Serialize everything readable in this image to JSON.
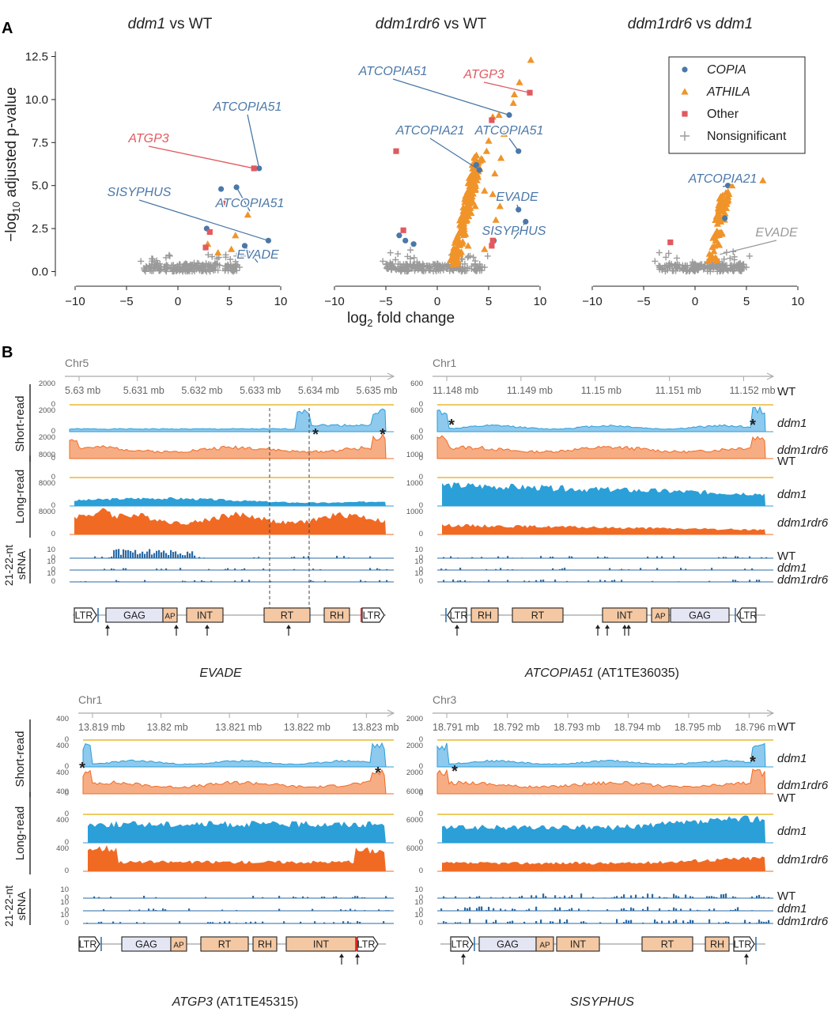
{
  "panel_a": {
    "label": "A",
    "titles": [
      {
        "parts": [
          {
            "t": "ddm1",
            "i": true
          },
          {
            "t": " vs WT",
            "i": false
          }
        ]
      },
      {
        "parts": [
          {
            "t": "ddm1rdr6",
            "i": true
          },
          {
            "t": " vs WT",
            "i": false
          }
        ]
      },
      {
        "parts": [
          {
            "t": "ddm1rdr6",
            "i": true
          },
          {
            "t": " vs ",
            "i": false
          },
          {
            "t": "ddm1",
            "i": true
          }
        ]
      }
    ],
    "xlabel_prefix": "log",
    "xlabel_sub": "2",
    "xlabel_suffix": " fold change",
    "ylabel_prefix": "−log",
    "ylabel_sub": "10",
    "ylabel_suffix": " adjusted p-value",
    "legend": [
      {
        "label": "COPIA",
        "italic": true,
        "shape": "circle",
        "color": "#4a78a8"
      },
      {
        "label": "ATHILA",
        "italic": true,
        "shape": "triangle",
        "color": "#f0942a"
      },
      {
        "label": "Other",
        "italic": false,
        "shape": "square",
        "color": "#e05a5f"
      },
      {
        "label": "Nonsignificant",
        "italic": false,
        "shape": "plus",
        "color": "#9a9a9a"
      }
    ]
  },
  "chart_data": [
    {
      "type": "scatter",
      "title": "ddm1 vs WT",
      "xlim": [
        -11,
        11
      ],
      "ylim": [
        -0.3,
        12.8
      ],
      "xticks": [
        -10,
        -5,
        0,
        5,
        10
      ],
      "yticks": [
        0.0,
        2.5,
        5.0,
        7.5,
        10.0,
        12.5
      ],
      "series": [
        {
          "name": "COPIA",
          "points": [
            [
              7.9,
              6.0
            ],
            [
              4.2,
              4.8
            ],
            [
              5.7,
              4.9
            ],
            [
              2.8,
              2.5
            ],
            [
              6.5,
              1.5
            ],
            [
              8.8,
              1.8
            ]
          ]
        },
        {
          "name": "ATHILA",
          "points": [
            [
              6.8,
              3.3
            ],
            [
              5.6,
              2.1
            ],
            [
              2.9,
              1.6
            ],
            [
              5.2,
              1.3
            ],
            [
              3.9,
              1.1
            ]
          ]
        },
        {
          "name": "Other",
          "points": [
            [
              7.4,
              6.0
            ],
            [
              4.6,
              4.0
            ],
            [
              3.1,
              2.3
            ],
            [
              2.7,
              1.4
            ]
          ]
        },
        {
          "name": "Nonsignificant",
          "band": [
            -3.3,
            5.8
          ]
        }
      ],
      "annotations": [
        {
          "text": "ATCOPIA51",
          "color": "#4a78a8",
          "target": [
            7.9,
            6.0
          ]
        },
        {
          "text": "ATGP3",
          "color": "#e05a5f",
          "target": [
            7.4,
            6.0
          ]
        },
        {
          "text": "SISYPHUS",
          "color": "#4a78a8",
          "target": [
            8.8,
            1.8
          ]
        },
        {
          "text": "ATCOPIA51",
          "color": "#4a78a8",
          "target": [
            5.7,
            4.9
          ]
        },
        {
          "text": "EVADE",
          "color": "#4a78a8",
          "target": [
            6.5,
            1.5
          ]
        }
      ]
    },
    {
      "type": "scatter",
      "title": "ddm1rdr6 vs WT",
      "xlim": [
        -11,
        11
      ],
      "ylim": [
        -0.3,
        12.8
      ],
      "xticks": [
        -10,
        -5,
        0,
        5,
        10
      ],
      "yticks": [
        0.0,
        2.5,
        5.0,
        7.5,
        10.0,
        12.5
      ],
      "series": [
        {
          "name": "COPIA",
          "points": [
            [
              7.0,
              9.1
            ],
            [
              7.9,
              7.0
            ],
            [
              3.8,
              6.2
            ],
            [
              4.1,
              5.9
            ],
            [
              7.9,
              3.6
            ],
            [
              8.6,
              2.9
            ],
            [
              -3.7,
              2.1
            ],
            [
              -3.1,
              1.8
            ],
            [
              -2.3,
              1.6
            ],
            [
              5.5,
              1.8
            ]
          ]
        },
        {
          "name": "ATHILA",
          "points": [
            [
              9.1,
              12.3
            ],
            [
              8.0,
              11.0
            ],
            [
              7.5,
              10.3
            ],
            [
              7.4,
              9.8
            ],
            [
              6.0,
              9.1
            ],
            [
              5.4,
              9.0
            ],
            [
              6.5,
              8.0
            ],
            [
              5.0,
              7.6
            ],
            [
              4.8,
              7.0
            ],
            [
              6.2,
              6.6
            ],
            [
              4.4,
              6.5
            ],
            [
              5.6,
              5.7
            ],
            [
              3.6,
              5.4
            ],
            [
              4.6,
              4.7
            ],
            [
              5.4,
              4.5
            ],
            [
              6.1,
              3.8
            ],
            [
              5.7,
              3.0
            ],
            [
              3.7,
              3.8
            ],
            [
              3.3,
              3.4
            ],
            [
              2.9,
              3.0
            ],
            [
              2.5,
              2.3
            ],
            [
              3.0,
              1.5
            ],
            [
              4.6,
              1.3
            ]
          ]
        },
        {
          "name": "Other",
          "points": [
            [
              9.0,
              10.4
            ],
            [
              5.3,
              8.8
            ],
            [
              -4.0,
              7.0
            ],
            [
              -3.3,
              2.4
            ],
            [
              5.4,
              1.8
            ],
            [
              5.3,
              1.5
            ]
          ]
        },
        {
          "name": "Nonsignificant",
          "band": [
            -5.0,
            4.4
          ]
        }
      ],
      "annotations": [
        {
          "text": "ATCOPIA51",
          "color": "#4a78a8",
          "target": [
            7.0,
            9.1
          ]
        },
        {
          "text": "ATGP3",
          "color": "#e05a5f",
          "target": [
            9.0,
            10.4
          ]
        },
        {
          "text": "ATCOPIA21",
          "color": "#4a78a8",
          "target": [
            4.1,
            5.9
          ]
        },
        {
          "text": "ATCOPIA51",
          "color": "#4a78a8",
          "target": [
            7.9,
            7.0
          ]
        },
        {
          "text": "EVADE",
          "color": "#4a78a8",
          "target": [
            7.9,
            3.6
          ]
        },
        {
          "text": "SISYPHUS",
          "color": "#4a78a8",
          "target": [
            8.6,
            2.9
          ]
        }
      ]
    },
    {
      "type": "scatter",
      "title": "ddm1rdr6 vs ddm1",
      "xlim": [
        -11,
        11
      ],
      "ylim": [
        -0.3,
        12.8
      ],
      "xticks": [
        -10,
        -5,
        0,
        5,
        10
      ],
      "yticks": [
        0.0,
        2.5,
        5.0,
        7.5,
        10.0,
        12.5
      ],
      "series": [
        {
          "name": "COPIA",
          "points": [
            [
              3.2,
              5.0
            ],
            [
              2.9,
              3.1
            ]
          ]
        },
        {
          "name": "ATHILA",
          "points": [
            [
              6.6,
              5.3
            ],
            [
              3.6,
              5.0
            ],
            [
              3.3,
              4.5
            ],
            [
              3.0,
              4.1
            ],
            [
              2.7,
              3.5
            ],
            [
              2.5,
              2.9
            ],
            [
              2.2,
              2.3
            ],
            [
              2.0,
              1.8
            ]
          ]
        },
        {
          "name": "Other",
          "points": [
            [
              -2.4,
              1.7
            ]
          ]
        },
        {
          "name": "Nonsignificant",
          "band": [
            -3.6,
            4.8
          ]
        }
      ],
      "annotations": [
        {
          "text": "ATCOPIA21",
          "color": "#4a78a8",
          "target": [
            3.2,
            5.0
          ]
        },
        {
          "text": "EVADE",
          "color": "#9a9a9a",
          "target": [
            2.4,
            1.0
          ]
        }
      ]
    }
  ],
  "panel_b": {
    "label": "B",
    "row_labels": {
      "short": "Short-read",
      "long": "Long-read",
      "srna1": "21-22-nt",
      "srna2": "sRNA"
    },
    "samples": [
      "WT",
      "ddm1",
      "ddm1rdr6"
    ],
    "colors": {
      "wt": "#e8b830",
      "ddm1": "#2b9fd8",
      "rdr6": "#f06a24",
      "srna": "#2a6aa5",
      "domain_fill": "#f4c8a2",
      "gag_fill": "#e4e6f4"
    },
    "tracks": [
      {
        "chrom": "Chr5",
        "ticks": [
          "5.63 mb",
          "5.631 mb",
          "5.632 mb",
          "5.633 mb",
          "5.634 mb",
          "5.635 mb"
        ],
        "short_scale": [
          "2000",
          "0",
          "2000",
          "0",
          "2000",
          "0"
        ],
        "long_scale": [
          "8000",
          "0",
          "8000",
          "0",
          "8000",
          "0"
        ],
        "srna_scale": [
          "10",
          "0",
          "10",
          "0",
          "10",
          "0"
        ],
        "name_parts": [
          {
            "t": "EVADE",
            "i": true
          }
        ],
        "domains": [
          "LTR",
          "GAG",
          "AP",
          "INT",
          "RT",
          "RH",
          "LTR"
        ]
      },
      {
        "chrom": "Chr1",
        "ticks": [
          "11.148 mb",
          "11.149 mb",
          "11.15 mb",
          "11.151 mb",
          "11.152 mb"
        ],
        "short_scale": [
          "600",
          "0",
          "600",
          "0",
          "600",
          "0"
        ],
        "long_scale": [
          "1000",
          "0",
          "1000",
          "0",
          "1000",
          "0"
        ],
        "srna_scale": [
          "10",
          "0",
          "10",
          "0",
          "10",
          "0"
        ],
        "name_parts": [
          {
            "t": "ATCOPIA51",
            "i": true
          },
          {
            "t": " (AT1TE36035)",
            "i": false
          }
        ],
        "domains": [
          "LTR",
          "RH",
          "RT",
          "INT",
          "AP",
          "GAG",
          "LTR"
        ]
      },
      {
        "chrom": "Chr1",
        "ticks": [
          "13.819 mb",
          "13.82 mb",
          "13.821 mb",
          "13.822 mb",
          "13.823 mb"
        ],
        "short_scale": [
          "400",
          "0",
          "400",
          "0",
          "400",
          "0"
        ],
        "long_scale": [
          "400",
          "0",
          "400",
          "0",
          "400",
          "0"
        ],
        "srna_scale": [
          "10",
          "0",
          "10",
          "0",
          "10",
          "0"
        ],
        "name_parts": [
          {
            "t": "ATGP3",
            "i": true
          },
          {
            "t": " (AT1TE45315)",
            "i": false
          }
        ],
        "domains": [
          "LTR",
          "GAG",
          "AP",
          "RT",
          "RH",
          "INT",
          "LTR"
        ]
      },
      {
        "chrom": "Chr3",
        "ticks": [
          "18.791 mb",
          "18.792 mb",
          "18.793 mb",
          "18.794 mb",
          "18.795 mb",
          "18.796 m"
        ],
        "short_scale": [
          "2000",
          "0",
          "2000",
          "0",
          "2000",
          "0"
        ],
        "long_scale": [
          "6000",
          "0",
          "6000",
          "0",
          "6000",
          "0"
        ],
        "srna_scale": [
          "10",
          "0",
          "10",
          "0",
          "10",
          "0"
        ],
        "name_parts": [
          {
            "t": "SISYPHUS",
            "i": true
          }
        ],
        "domains": [
          "LTR",
          "GAG",
          "AP",
          "INT",
          "RT",
          "RH",
          "LTR"
        ]
      }
    ],
    "asterisk": "*"
  }
}
